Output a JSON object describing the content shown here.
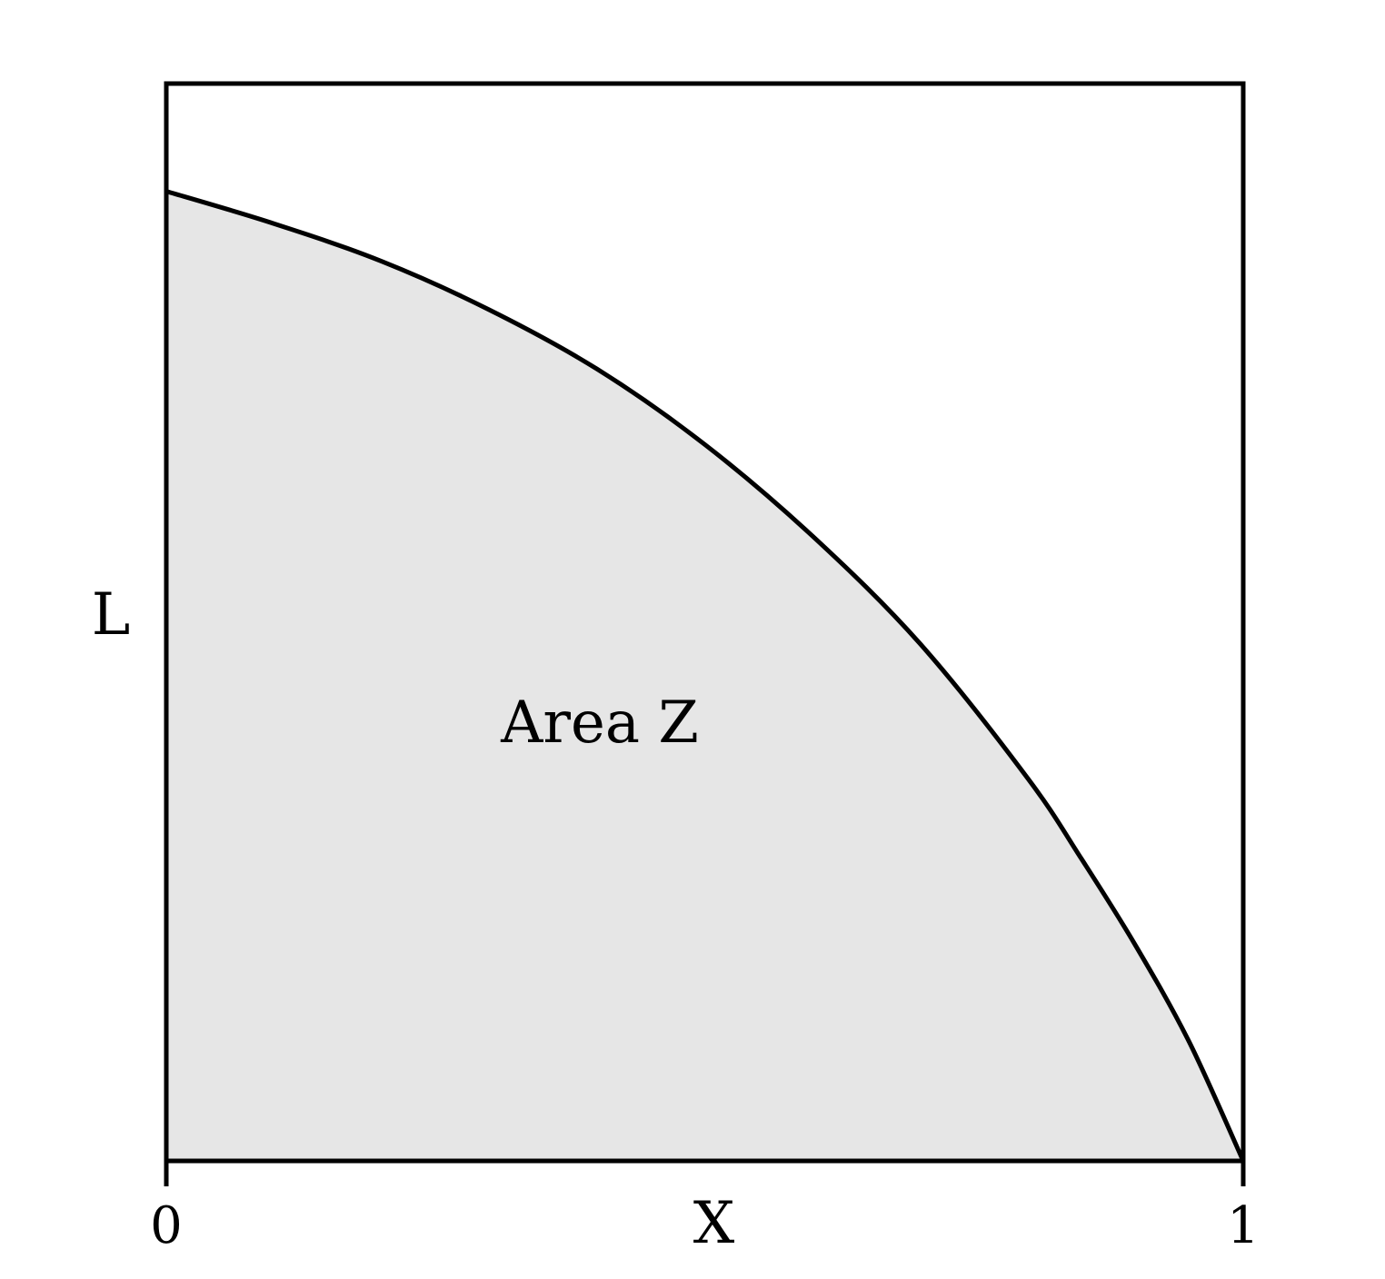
{
  "chart_data": {
    "type": "area",
    "title": "",
    "xlabel": "X",
    "ylabel": "L",
    "xlim": [
      0,
      1
    ],
    "ylim": [
      0,
      1
    ],
    "x_ticks": [
      "0",
      "1"
    ],
    "grid": false,
    "legend": "none",
    "annotation": "Area Z",
    "curve": {
      "x": [
        0,
        0.1,
        0.2,
        0.3,
        0.4,
        0.5,
        0.6,
        0.7,
        0.8,
        0.85,
        0.9,
        0.95,
        1.0
      ],
      "y": [
        0.9,
        0.87,
        0.835,
        0.79,
        0.735,
        0.665,
        0.58,
        0.48,
        0.355,
        0.28,
        0.2,
        0.11,
        0
      ]
    },
    "colors": {
      "fill": "#e6e6e6",
      "line": "#000000",
      "frame": "#000000"
    }
  }
}
